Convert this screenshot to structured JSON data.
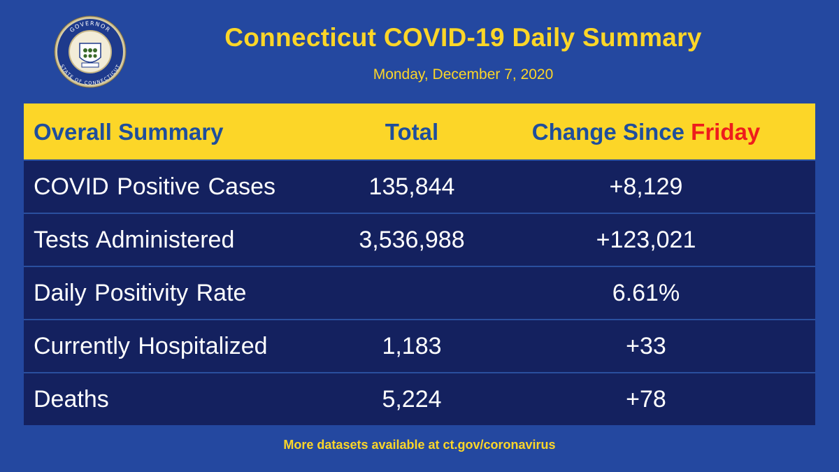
{
  "header": {
    "title": "Connecticut COVID-19 Daily Summary",
    "date": "Monday, December 7, 2020",
    "seal": {
      "top_text": "GOVERNOR",
      "bottom_text": "STATE OF CONNECTICUT"
    }
  },
  "table": {
    "columns": {
      "summary": "Overall Summary",
      "total": "Total",
      "change_prefix": "Change Since",
      "change_day": "Friday"
    },
    "rows": [
      {
        "label": "COVID Positive Cases",
        "total": "135,844",
        "change": "+8,129"
      },
      {
        "label": "Tests Administered",
        "total": "3,536,988",
        "change": "+123,021"
      },
      {
        "label": "Daily Positivity Rate",
        "total": "",
        "change": "6.61%"
      },
      {
        "label": "Currently Hospitalized",
        "total": "1,183",
        "change": "+33"
      },
      {
        "label": "Deaths",
        "total": "5,224",
        "change": "+78"
      }
    ]
  },
  "footer": {
    "text": "More datasets available at ct.gov/coronavirus"
  },
  "colors": {
    "background": "#2448a0",
    "accent_yellow": "#fcd628",
    "header_text": "#1f4e9c",
    "highlight_red": "#ee1c1c",
    "row_background": "#14215f"
  }
}
